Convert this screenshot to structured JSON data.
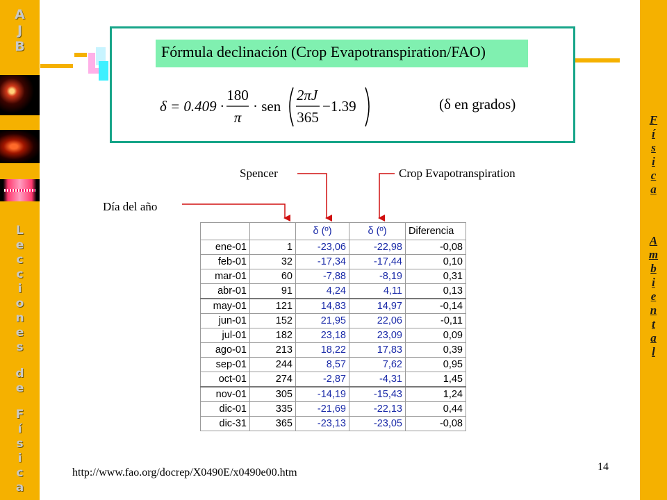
{
  "left_banner": {
    "logo_letters": [
      "A",
      "J",
      "B"
    ],
    "side_letters": [
      "L",
      "e",
      "c",
      "c",
      "i",
      "o",
      "n",
      "e",
      "s",
      "",
      "d",
      "e",
      "",
      "F",
      "í",
      "s",
      "i",
      "c",
      "a"
    ]
  },
  "right_banner": {
    "word1_letters": [
      "F",
      "í",
      "s",
      "i",
      "c",
      "a"
    ],
    "word2_letters": [
      "A",
      "m",
      "b",
      "i",
      "e",
      "n",
      "t",
      "a",
      "l"
    ]
  },
  "formula_box": {
    "title": "Fórmula declinación (Crop Evapotranspiration/FAO)",
    "formula_lhs": "δ = 0.409 ·",
    "formula_frac_num": "180",
    "formula_frac_den": "π",
    "formula_sen": "· sen",
    "formula_inner_num": "2πJ",
    "formula_inner_den": "365",
    "formula_inner_rest": "−1.39",
    "note": "(δ en grados)"
  },
  "labels": {
    "spencer": "Spencer",
    "crop": "Crop Evapotranspiration",
    "day": "Día del año"
  },
  "table": {
    "headers": [
      "",
      "",
      "δ (º)",
      "δ (º)",
      "Diferencia"
    ],
    "rows": [
      [
        "ene-01",
        "1",
        "-23,06",
        "-22,98",
        "-0,08"
      ],
      [
        "feb-01",
        "32",
        "-17,34",
        "-17,44",
        "0,10"
      ],
      [
        "mar-01",
        "60",
        "-7,88",
        "-8,19",
        "0,31"
      ],
      [
        "abr-01",
        "91",
        "4,24",
        "4,11",
        "0,13"
      ],
      [
        "may-01",
        "121",
        "14,83",
        "14,97",
        "-0,14"
      ],
      [
        "jun-01",
        "152",
        "21,95",
        "22,06",
        "-0,11"
      ],
      [
        "jul-01",
        "182",
        "23,18",
        "23,09",
        "0,09"
      ],
      [
        "ago-01",
        "213",
        "18,22",
        "17,83",
        "0,39"
      ],
      [
        "sep-01",
        "244",
        "8,57",
        "7,62",
        "0,95"
      ],
      [
        "oct-01",
        "274",
        "-2,87",
        "-4,31",
        "1,45"
      ],
      [
        "nov-01",
        "305",
        "-14,19",
        "-15,43",
        "1,24"
      ],
      [
        "dic-01",
        "335",
        "-21,69",
        "-22,13",
        "0,44"
      ],
      [
        "dic-31",
        "365",
        "-23,13",
        "-23,05",
        "-0,08"
      ]
    ]
  },
  "footer": {
    "url": "http://www.fao.org/docrep/X0490E/x0490e00.htm",
    "page_number": "14"
  },
  "colors": {
    "banner": "#f5b100",
    "box_border": "#17a589",
    "title_band": "#80f0b0",
    "arrow": "#d01010",
    "table_blue": "#1a2aa8"
  }
}
